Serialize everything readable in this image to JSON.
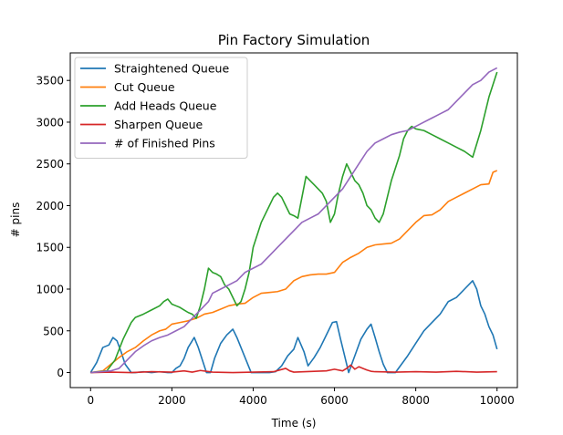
{
  "chart_data": {
    "type": "line",
    "title": "Pin Factory Simulation",
    "xlabel": "Time (s)",
    "ylabel": "# pins",
    "xlim": [
      -500,
      10500
    ],
    "ylim": [
      -180,
      3830
    ],
    "xticks": [
      0,
      2000,
      4000,
      6000,
      8000,
      10000
    ],
    "yticks": [
      0,
      500,
      1000,
      1500,
      2000,
      2500,
      3000,
      3500
    ],
    "xtick_labels": [
      "0",
      "2000",
      "4000",
      "6000",
      "8000",
      "10000"
    ],
    "ytick_labels": [
      "0",
      "500",
      "1000",
      "1500",
      "2000",
      "2500",
      "3000",
      "3500"
    ],
    "grid": false,
    "legend_position": "top-left",
    "series": [
      {
        "name": "Straightened Queue",
        "color": "#1f77b4",
        "x": [
          0,
          150,
          300,
          450,
          550,
          650,
          750,
          850,
          1000,
          1100,
          1300,
          1500,
          1700,
          1900,
          2000,
          2100,
          2200,
          2300,
          2400,
          2550,
          2650,
          2750,
          2850,
          2950,
          3050,
          3200,
          3350,
          3500,
          3600,
          3700,
          3800,
          3950,
          4100,
          4250,
          4400,
          4550,
          4700,
          4850,
          5000,
          5100,
          5250,
          5350,
          5500,
          5650,
          5800,
          5950,
          6050,
          6150,
          6250,
          6350,
          6500,
          6650,
          6800,
          6900,
          7000,
          7100,
          7200,
          7300,
          7400,
          7500,
          7650,
          7800,
          8000,
          8200,
          8400,
          8600,
          8800,
          9000,
          9200,
          9400,
          9500,
          9600,
          9700,
          9800,
          9900,
          10000
        ],
        "y": [
          0,
          120,
          300,
          330,
          420,
          380,
          250,
          100,
          0,
          0,
          10,
          0,
          10,
          0,
          0,
          50,
          80,
          170,
          300,
          420,
          300,
          150,
          0,
          0,
          170,
          350,
          450,
          520,
          420,
          300,
          180,
          0,
          0,
          0,
          0,
          10,
          80,
          200,
          280,
          420,
          250,
          80,
          180,
          300,
          450,
          600,
          610,
          400,
          200,
          0,
          200,
          400,
          520,
          580,
          420,
          250,
          100,
          0,
          0,
          0,
          100,
          200,
          350,
          500,
          600,
          700,
          850,
          900,
          1000,
          1100,
          1000,
          800,
          700,
          550,
          450,
          280
        ]
      },
      {
        "name": "Cut Queue",
        "color": "#ff7f0e",
        "x": [
          0,
          300,
          500,
          700,
          900,
          1100,
          1300,
          1500,
          1700,
          1850,
          2000,
          2200,
          2400,
          2600,
          2800,
          3000,
          3200,
          3400,
          3600,
          3800,
          4000,
          4200,
          4400,
          4600,
          4800,
          5000,
          5200,
          5400,
          5600,
          5800,
          6000,
          6200,
          6400,
          6600,
          6800,
          7000,
          7200,
          7400,
          7600,
          7800,
          8000,
          8200,
          8400,
          8600,
          8800,
          9000,
          9200,
          9400,
          9600,
          9800,
          9900,
          10000
        ],
        "y": [
          0,
          20,
          100,
          180,
          250,
          300,
          380,
          450,
          500,
          520,
          580,
          600,
          620,
          650,
          700,
          720,
          760,
          800,
          820,
          830,
          900,
          950,
          960,
          970,
          1000,
          1100,
          1150,
          1170,
          1180,
          1180,
          1200,
          1320,
          1380,
          1430,
          1500,
          1530,
          1540,
          1550,
          1600,
          1700,
          1800,
          1880,
          1890,
          1950,
          2050,
          2100,
          2150,
          2200,
          2250,
          2260,
          2400,
          2420
        ]
      },
      {
        "name": "Add Heads Queue",
        "color": "#2ca02c",
        "x": [
          0,
          400,
          600,
          800,
          1000,
          1100,
          1300,
          1500,
          1700,
          1800,
          1900,
          2000,
          2100,
          2200,
          2300,
          2400,
          2500,
          2600,
          2700,
          2800,
          2900,
          3000,
          3100,
          3200,
          3300,
          3400,
          3500,
          3600,
          3700,
          3800,
          3900,
          4000,
          4200,
          4400,
          4500,
          4600,
          4700,
          4800,
          4900,
          5000,
          5100,
          5200,
          5300,
          5400,
          5500,
          5600,
          5700,
          5800,
          5900,
          6000,
          6100,
          6200,
          6300,
          6400,
          6500,
          6600,
          6700,
          6800,
          6900,
          7000,
          7100,
          7200,
          7400,
          7600,
          7700,
          7800,
          7900,
          8000,
          8200,
          8400,
          8600,
          8800,
          9000,
          9200,
          9400,
          9600,
          9800,
          10000
        ],
        "y": [
          0,
          20,
          150,
          400,
          600,
          660,
          700,
          750,
          800,
          850,
          880,
          820,
          800,
          780,
          750,
          720,
          700,
          650,
          800,
          1000,
          1250,
          1200,
          1180,
          1150,
          1050,
          1000,
          900,
          800,
          850,
          1000,
          1200,
          1500,
          1800,
          2000,
          2100,
          2150,
          2100,
          2000,
          1900,
          1880,
          1850,
          2100,
          2350,
          2300,
          2250,
          2200,
          2150,
          2050,
          1800,
          1900,
          2150,
          2350,
          2500,
          2400,
          2300,
          2250,
          2150,
          2000,
          1950,
          1850,
          1800,
          1900,
          2300,
          2600,
          2800,
          2900,
          2950,
          2920,
          2900,
          2850,
          2800,
          2750,
          2700,
          2650,
          2580,
          2900,
          3300,
          3600
        ]
      },
      {
        "name": "Sharpen Queue",
        "color": "#d62728",
        "x": [
          0,
          500,
          1000,
          1500,
          2000,
          2300,
          2500,
          2700,
          3000,
          3500,
          4000,
          4500,
          4800,
          4900,
          5000,
          5500,
          5800,
          6000,
          6200,
          6300,
          6400,
          6500,
          6600,
          6700,
          6800,
          6900,
          7000,
          7500,
          8000,
          8500,
          9000,
          9500,
          10000
        ],
        "y": [
          0,
          5,
          0,
          10,
          5,
          20,
          5,
          25,
          5,
          0,
          5,
          10,
          50,
          20,
          5,
          15,
          20,
          40,
          20,
          50,
          90,
          40,
          70,
          50,
          30,
          15,
          10,
          5,
          10,
          5,
          15,
          5,
          10
        ]
      },
      {
        "name": "# of Finished Pins",
        "color": "#9467bd",
        "x": [
          0,
          500,
          700,
          900,
          1100,
          1300,
          1500,
          1700,
          1900,
          2100,
          2300,
          2500,
          2700,
          2900,
          3000,
          3200,
          3400,
          3600,
          3800,
          4000,
          4200,
          4400,
          4600,
          4800,
          5000,
          5200,
          5400,
          5600,
          5800,
          6000,
          6200,
          6400,
          6600,
          6800,
          7000,
          7200,
          7400,
          7600,
          7800,
          8000,
          8200,
          8400,
          8600,
          8800,
          9000,
          9200,
          9400,
          9600,
          9800,
          10000
        ],
        "y": [
          0,
          20,
          50,
          150,
          250,
          320,
          380,
          420,
          450,
          500,
          550,
          650,
          750,
          850,
          950,
          1000,
          1050,
          1100,
          1200,
          1250,
          1300,
          1400,
          1500,
          1600,
          1700,
          1800,
          1850,
          1900,
          2000,
          2100,
          2200,
          2350,
          2500,
          2650,
          2750,
          2800,
          2850,
          2880,
          2900,
          2950,
          3000,
          3050,
          3100,
          3150,
          3250,
          3350,
          3450,
          3500,
          3600,
          3650
        ]
      }
    ]
  }
}
